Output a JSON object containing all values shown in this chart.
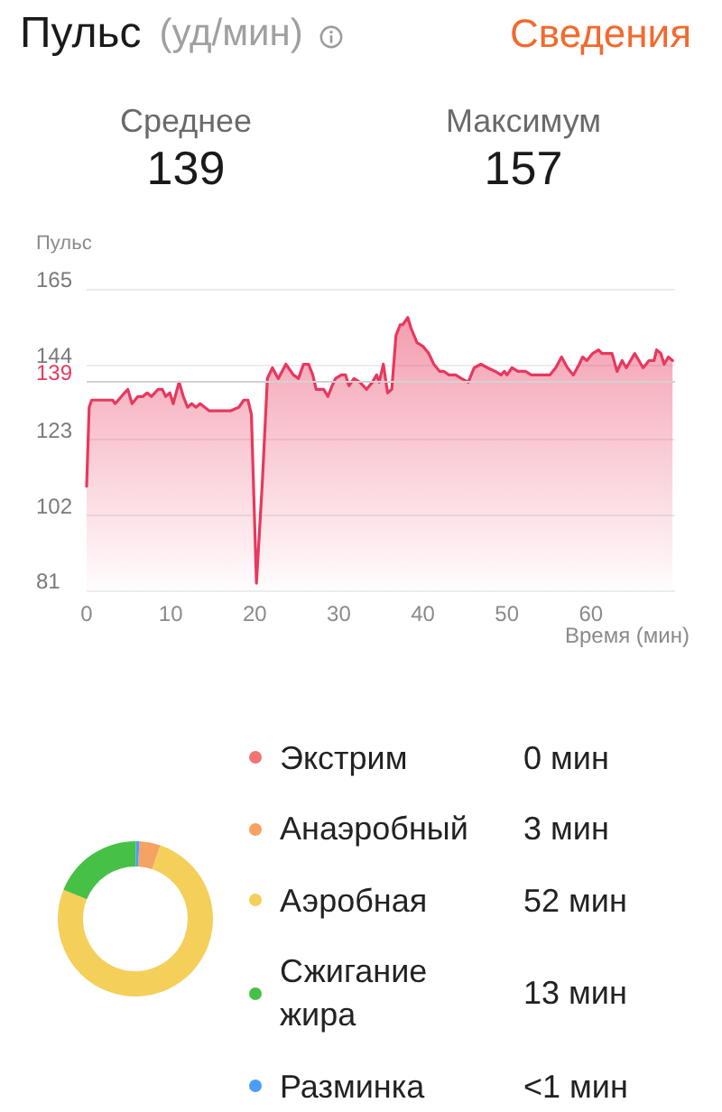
{
  "chart_data": [
    {
      "type": "area",
      "title": "Пульс",
      "subtitle": "(уд/мин)",
      "xlabel": "Время (мин)",
      "ylabel": "Пульс",
      "annotations": [
        "Сведения",
        "Среднее",
        "139",
        "Максимум",
        "157"
      ],
      "x": [
        0,
        0.3,
        0.6,
        3.1,
        3.4,
        4.5,
        4.9,
        5.4,
        6.1,
        6.7,
        7.2,
        7.7,
        8.5,
        9,
        9.4,
        9.9,
        10.3,
        11,
        11.5,
        12,
        12.5,
        13,
        13.5,
        14.6,
        17.1,
        18.1,
        18.7,
        19.2,
        19.6,
        20.2,
        20.9,
        21.5,
        22.1,
        22.8,
        23.7,
        24.6,
        25.2,
        25.8,
        26.4,
        26.9,
        27.3,
        28.2,
        28.7,
        29.2,
        29.6,
        30.3,
        30.8,
        31.2,
        31.8,
        32.5,
        33.3,
        34,
        34.5,
        34.8,
        35.3,
        35.8,
        36.3,
        36.8,
        37.3,
        37.6,
        38.2,
        38.6,
        39.3,
        40,
        40.7,
        41.3,
        42,
        42.5,
        43.1,
        43.9,
        44.6,
        45.4,
        46.1,
        46.9,
        47.7,
        48.6,
        49.3,
        49.7,
        50,
        50.6,
        51.3,
        52.2,
        52.9,
        55.1,
        55.8,
        56.5,
        57.2,
        57.9,
        58.6,
        59,
        59.5,
        60.2,
        60.9,
        61.3,
        62.1,
        62.5,
        63.1,
        63.7,
        64.2,
        65.2,
        66.2,
        66.9,
        67.5,
        67.8,
        68.3,
        68.7,
        69.2,
        69.7
      ],
      "series": [
        {
          "color": "#e8385e",
          "values": [
            110,
            132,
            134,
            134,
            133,
            136,
            137,
            133,
            135,
            135,
            136,
            135,
            137,
            137,
            135,
            136,
            133,
            139,
            135,
            132,
            133,
            132,
            133,
            131,
            131,
            132,
            134,
            134,
            130,
            83,
            111,
            140,
            143,
            140,
            144,
            141,
            140,
            144,
            144,
            141,
            137,
            137,
            135,
            138,
            140,
            141,
            141,
            138,
            140,
            139,
            137,
            139,
            141,
            139,
            144,
            136,
            137,
            152,
            155,
            155,
            157,
            154,
            150,
            149,
            147,
            144,
            142,
            142,
            141,
            141,
            140,
            139,
            143,
            144,
            143,
            142,
            141,
            142,
            141,
            143,
            142,
            142,
            141,
            141,
            143,
            146,
            143,
            141,
            144,
            146,
            145,
            147,
            148,
            147,
            147,
            147,
            142,
            145,
            143,
            147,
            143,
            145,
            145,
            148,
            147,
            144,
            146,
            145
          ]
        }
      ],
      "xlim": [
        0,
        70
      ],
      "xticks": [
        0,
        10,
        20,
        30,
        40,
        50,
        60
      ],
      "ylim": [
        81,
        165
      ],
      "yticks": [
        81,
        102,
        123,
        144,
        165
      ],
      "ref_lines": [
        {
          "axis": "y",
          "value": 139,
          "label": "139"
        }
      ],
      "grid": "y",
      "marker": "none"
    },
    {
      "type": "donut",
      "categories": [
        "Экстрим",
        "Анаэробный",
        "Аэробная",
        "Сжигание жира",
        "Разминка"
      ],
      "values": [
        0,
        3,
        52,
        13,
        0.5
      ],
      "colors": [
        "#f27474",
        "#f5a262",
        "#f4cf5a",
        "#46c146",
        "#4a9ef7"
      ],
      "value_labels": [
        "0 мин",
        "3 мин",
        "52 мин",
        "13 мин",
        "<1 мин"
      ],
      "legend": "right"
    }
  ]
}
